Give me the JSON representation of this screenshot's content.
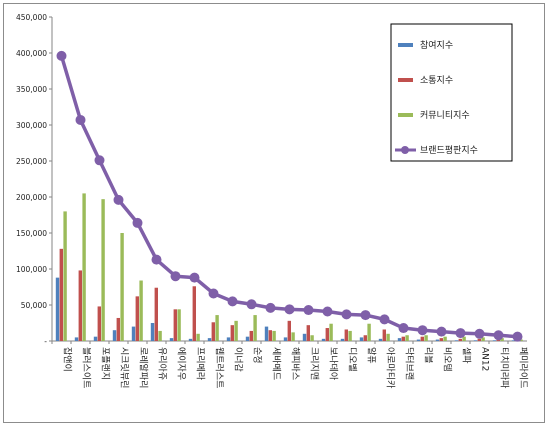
{
  "chart_data": {
    "type": "bar",
    "title": "",
    "xlabel": "",
    "ylabel": "",
    "ylim": [
      0,
      450000
    ],
    "yticks": [
      "-",
      "50,000",
      "100,000",
      "150,000",
      "200,000",
      "250,000",
      "300,000",
      "350,000",
      "400,000",
      "450,000"
    ],
    "grid": false,
    "legend_position": "top-right",
    "categories": [
      "잡앤이",
      "블러스이트",
      "포플랜지",
      "시크릿뷰린",
      "로레알파리",
      "유리아쥬",
      "에이자우",
      "프리메라",
      "웹트러스트",
      "이너감",
      "순정",
      "세바메드",
      "해피바스",
      "크리지맨",
      "보나데아",
      "디오벨",
      "알퓨",
      "아로마티카",
      "닥터브랜",
      "리블",
      "비오템",
      "셀파",
      "AN12",
      "티치미라파",
      "페미라이드"
    ],
    "series": [
      {
        "name": "참여지수",
        "kind": "bar",
        "color": "#4f81bd",
        "values": [
          88000,
          5000,
          6000,
          15000,
          20000,
          25000,
          4000,
          3000,
          4000,
          5000,
          6000,
          20000,
          5000,
          10000,
          3000,
          3000,
          5000,
          3000,
          4000,
          2000,
          2000,
          1000,
          1000,
          1000,
          1000
        ]
      },
      {
        "name": "소통지수",
        "kind": "bar",
        "color": "#c0504d",
        "values": [
          128000,
          98000,
          48000,
          32000,
          62000,
          74000,
          44000,
          76000,
          26000,
          22000,
          14000,
          15000,
          28000,
          22000,
          18000,
          16000,
          8000,
          16000,
          6000,
          6000,
          4000,
          3000,
          3000,
          2000,
          2000
        ]
      },
      {
        "name": "커뮤니티지수",
        "kind": "bar",
        "color": "#9bbb59",
        "values": [
          180000,
          205000,
          197000,
          150000,
          84000,
          14000,
          44000,
          10000,
          36000,
          28000,
          36000,
          14000,
          12000,
          8000,
          24000,
          14000,
          24000,
          10000,
          8000,
          8000,
          6000,
          6000,
          5000,
          4000,
          2000
        ]
      },
      {
        "name": "브랜드평판지수",
        "kind": "line",
        "color": "#7f5fa8",
        "values": [
          396000,
          307000,
          251000,
          196000,
          164000,
          113000,
          90000,
          88000,
          66000,
          55000,
          51000,
          46000,
          44000,
          43000,
          41000,
          37000,
          36000,
          30000,
          18000,
          15000,
          13000,
          11000,
          10000,
          8000,
          6000
        ]
      }
    ]
  }
}
